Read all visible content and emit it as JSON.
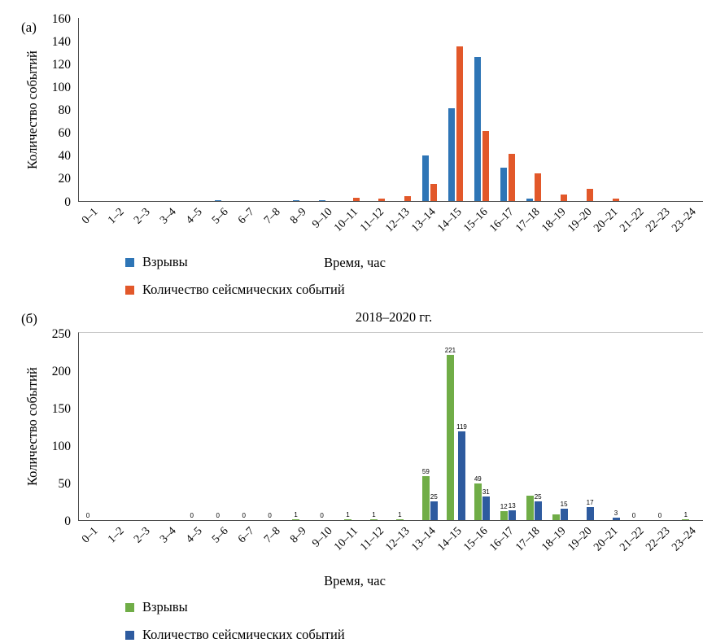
{
  "chart_data": [
    {
      "type": "bar",
      "panel_label": "(а)",
      "title": "",
      "xlabel": "Время, час",
      "ylabel": "Количество событий",
      "ylim": [
        0,
        160
      ],
      "ytick_step": 20,
      "grid": false,
      "legend_position": "bottom-left",
      "categories": [
        "0–1",
        "1–2",
        "2–3",
        "3–4",
        "4–5",
        "5–6",
        "6–7",
        "7–8",
        "8–9",
        "9–10",
        "10–11",
        "11–12",
        "12–13",
        "13–14",
        "14–15",
        "15–16",
        "16–17",
        "17–18",
        "18–19",
        "19–20",
        "20–21",
        "21–22",
        "22–23",
        "23–24"
      ],
      "series": [
        {
          "name": "Взрывы",
          "color": "#2e75b6",
          "values": [
            0,
            0,
            0,
            0,
            0,
            1,
            0,
            0,
            1,
            1,
            0,
            0,
            0,
            40,
            81,
            126,
            29,
            2,
            0,
            0,
            0,
            0,
            0,
            0
          ]
        },
        {
          "name": "Количество сейсмических событий",
          "color": "#e2582a",
          "values": [
            0,
            0,
            0,
            0,
            0,
            0,
            0,
            0,
            0,
            0,
            3,
            2,
            4,
            15,
            135,
            61,
            41,
            24,
            6,
            11,
            2,
            0,
            0,
            0
          ]
        }
      ]
    },
    {
      "type": "bar",
      "panel_label": "(б)",
      "title": "2018–2020 гг.",
      "xlabel": "Время, час",
      "ylabel": "Количество событий",
      "ylim": [
        0,
        250
      ],
      "ytick_step": 50,
      "grid": false,
      "legend_position": "bottom-left",
      "categories": [
        "0–1",
        "1–2",
        "2–3",
        "3–4",
        "4–5",
        "5–6",
        "6–7",
        "7–8",
        "8–9",
        "9–10",
        "10–11",
        "11–12",
        "12–13",
        "13–14",
        "14–15",
        "15–16",
        "16–17",
        "17–18",
        "18–19",
        "19–20",
        "20–21",
        "21–22",
        "22–23",
        "23–24"
      ],
      "series": [
        {
          "name": "Взрывы",
          "color": "#70ad47",
          "values": [
            0,
            0,
            0,
            0,
            0,
            0,
            0,
            0,
            1,
            0,
            1,
            1,
            1,
            59,
            221,
            49,
            12,
            33,
            8,
            0,
            0,
            0,
            0,
            1
          ],
          "labels": [
            "0",
            null,
            null,
            null,
            "0",
            "0",
            "0",
            "0",
            "1",
            "0",
            "1",
            "1",
            "1",
            "59",
            "221",
            "49",
            "12",
            null,
            null,
            null,
            null,
            "0",
            "0",
            "1"
          ]
        },
        {
          "name": "Количество сейсмических событий",
          "color": "#2e5b9f",
          "values": [
            0,
            0,
            0,
            0,
            0,
            0,
            0,
            0,
            0,
            0,
            0,
            0,
            0,
            25,
            119,
            31,
            13,
            25,
            15,
            17,
            3,
            0,
            0,
            0
          ],
          "labels": [
            null,
            null,
            null,
            null,
            null,
            null,
            null,
            null,
            null,
            null,
            null,
            null,
            null,
            "25",
            "119",
            "31",
            "13",
            "25",
            "15",
            "17",
            "3",
            null,
            null,
            null
          ]
        }
      ]
    }
  ]
}
